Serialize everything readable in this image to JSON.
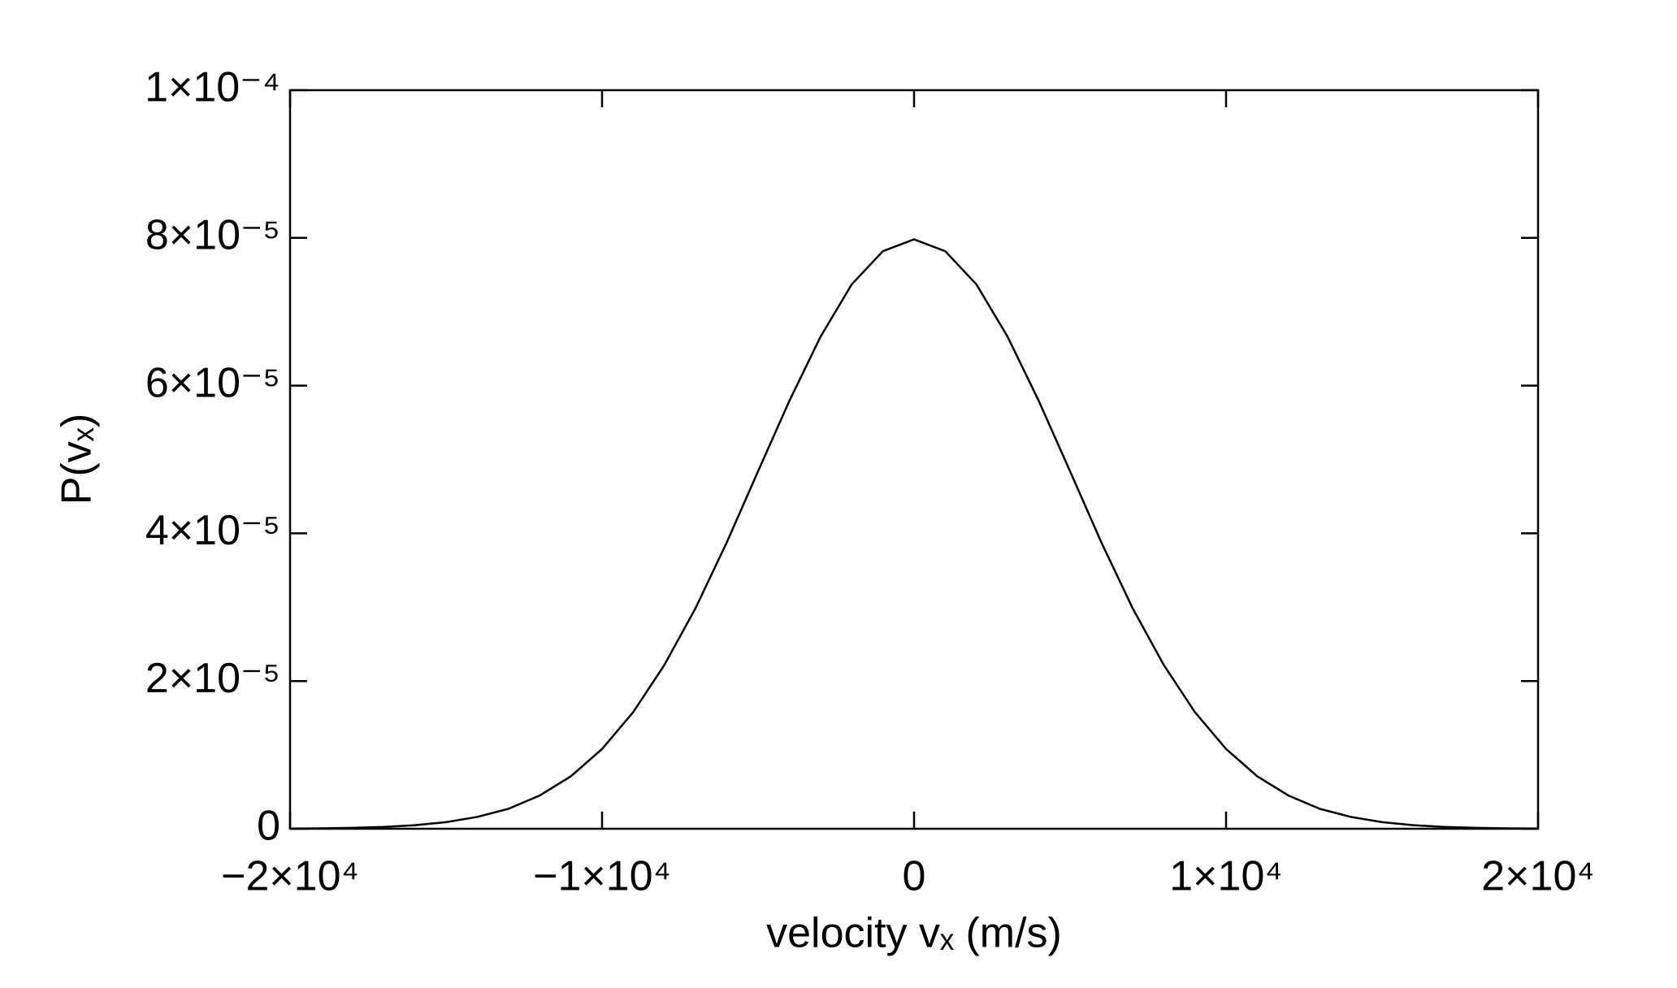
{
  "chart_data": {
    "type": "line",
    "xlabel": "velocity vₓ (m/s)",
    "ylabel": "P(vₓ)",
    "x": [
      -20000,
      -19000,
      -18000,
      -17000,
      -16000,
      -15000,
      -14000,
      -13000,
      -12000,
      -11000,
      -10000,
      -9000,
      -8000,
      -7000,
      -6000,
      -5000,
      -4000,
      -3000,
      -2000,
      -1000,
      0,
      1000,
      2000,
      3000,
      4000,
      5000,
      6000,
      7000,
      8000,
      9000,
      10000,
      11000,
      12000,
      13000,
      14000,
      15000,
      16000,
      17000,
      18000,
      19000,
      20000
    ],
    "series": [
      {
        "color": "#000000",
        "values": [
          2.7e-08,
          5.8e-08,
          1.2e-07,
          2.5e-07,
          4.8e-07,
          8.9e-07,
          1.6e-06,
          2.7e-06,
          4.5e-06,
          7.1e-06,
          1.08e-05,
          1.58e-05,
          2.22e-05,
          2.99e-05,
          3.88e-05,
          4.84e-05,
          5.79e-05,
          6.66e-05,
          7.37e-05,
          7.82e-05,
          7.98e-05,
          7.82e-05,
          7.37e-05,
          6.66e-05,
          5.79e-05,
          4.84e-05,
          3.88e-05,
          2.99e-05,
          2.22e-05,
          1.58e-05,
          1.08e-05,
          7.1e-06,
          4.5e-06,
          2.7e-06,
          1.6e-06,
          8.9e-07,
          4.8e-07,
          2.5e-07,
          1.2e-07,
          5.8e-08,
          2.7e-08
        ]
      }
    ],
    "xlim": [
      -20000,
      20000
    ],
    "xticks": [
      {
        "value": -20000,
        "label": "−2×10⁴"
      },
      {
        "value": -10000,
        "label": "−1×10⁴"
      },
      0,
      {
        "value": 10000,
        "label": "1×10⁴"
      },
      {
        "value": 20000,
        "label": "2×10⁴"
      }
    ],
    "ylim": [
      0,
      0.0001
    ],
    "yticks": [
      0,
      {
        "value": 2e-05,
        "label": "2×10⁻⁵"
      },
      {
        "value": 4e-05,
        "label": "4×10⁻⁵"
      },
      {
        "value": 6e-05,
        "label": "6×10⁻⁵"
      },
      {
        "value": 8e-05,
        "label": "8×10⁻⁵"
      },
      {
        "value": 0.0001,
        "label": "1×10⁻⁴"
      }
    ],
    "grid": false
  }
}
